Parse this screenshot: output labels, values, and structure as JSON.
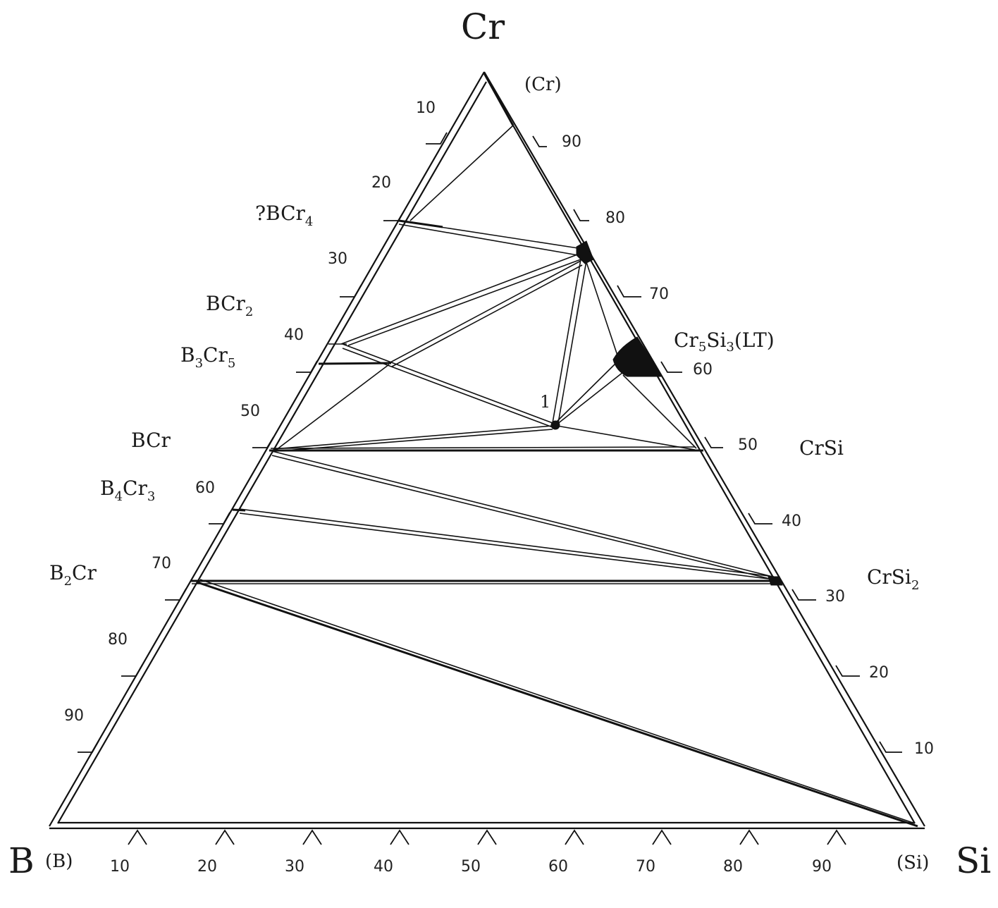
{
  "corners": {
    "top": "Cr",
    "left": "B",
    "right": "Si",
    "top_phase": "(Cr)",
    "left_phase": "(B)",
    "right_phase": "(Si)"
  },
  "axis_ticks": {
    "left": [
      "10",
      "20",
      "30",
      "40",
      "50",
      "60",
      "70",
      "80",
      "90"
    ],
    "right": [
      "90",
      "80",
      "70",
      "60",
      "50",
      "40",
      "30",
      "20",
      "10"
    ],
    "bottom": [
      "10",
      "20",
      "30",
      "40",
      "50",
      "60",
      "70",
      "80",
      "90"
    ]
  },
  "phases": {
    "bcr4": "?BCr",
    "bcr4_sub": "4",
    "bcr2": "BCr",
    "bcr2_sub": "2",
    "b3cr5_a": "B",
    "b3cr5_a_sub": "3",
    "b3cr5_b": "Cr",
    "b3cr5_b_sub": "5",
    "bcr": "BCr",
    "b4cr3_a": "B",
    "b4cr3_a_sub": "4",
    "b4cr3_b": "Cr",
    "b4cr3_b_sub": "3",
    "b2cr_a": "B",
    "b2cr_a_sub": "2",
    "b2cr_b": "Cr",
    "cr5si3_a": "Cr",
    "cr5si3_a_sub": "5",
    "cr5si3_b": "Si",
    "cr5si3_b_sub": "3",
    "cr5si3_c": "(LT)",
    "crsi": "CrSi",
    "crsi2": "CrSi",
    "crsi2_sub": "2",
    "point1": "1"
  }
}
